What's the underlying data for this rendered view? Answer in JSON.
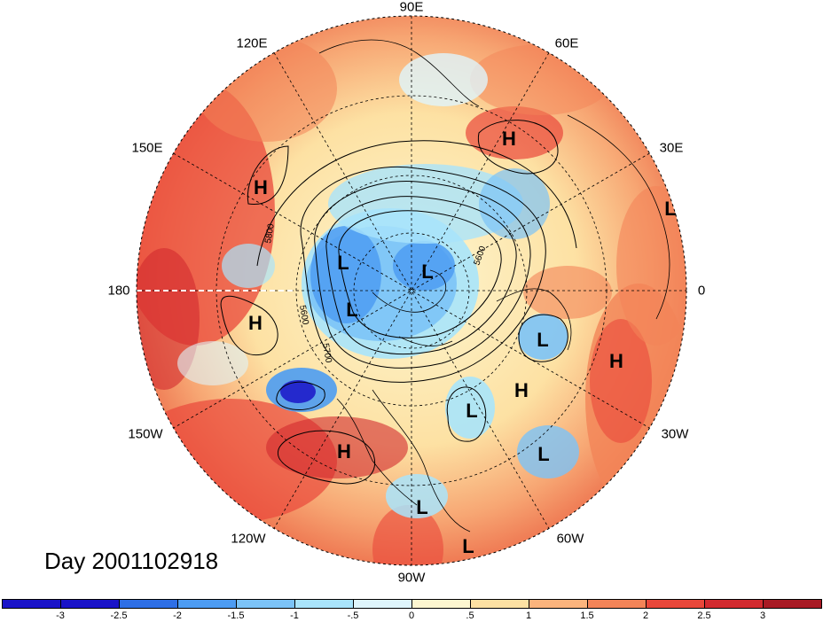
{
  "title": "Day 2001102918",
  "longitude_labels": {
    "lon_90e": "90E",
    "lon_120e": "120E",
    "lon_60e": "60E",
    "lon_150e": "150E",
    "lon_30e": "30E",
    "lon_180": "180",
    "lon_0": "0",
    "lon_150w": "150W",
    "lon_30w": "30W",
    "lon_120w": "120W",
    "lon_60w": "60W",
    "lon_90w": "90W"
  },
  "contour_labels": [
    "5800",
    "5600",
    "5700",
    "5600"
  ],
  "pressure_centers": [
    "H",
    "H",
    "H",
    "L",
    "L",
    "L",
    "L",
    "H",
    "L",
    "H",
    "L",
    "L",
    "H",
    "L",
    "L"
  ],
  "colorbar": {
    "ticks": [
      "-3",
      "-2.5",
      "-2",
      "-1.5",
      "-1",
      "-.5",
      "0",
      ".5",
      "1",
      "1.5",
      "2",
      "2.5",
      "3"
    ],
    "colors": [
      "#1a14c8",
      "#2e6fe6",
      "#4d9cf2",
      "#7cc3f7",
      "#a9e4fb",
      "#dff5fc",
      "#fdf6d0",
      "#fde1a3",
      "#fbb47d",
      "#f38458",
      "#e9473a",
      "#d22a2f",
      "#a81a24"
    ]
  }
}
